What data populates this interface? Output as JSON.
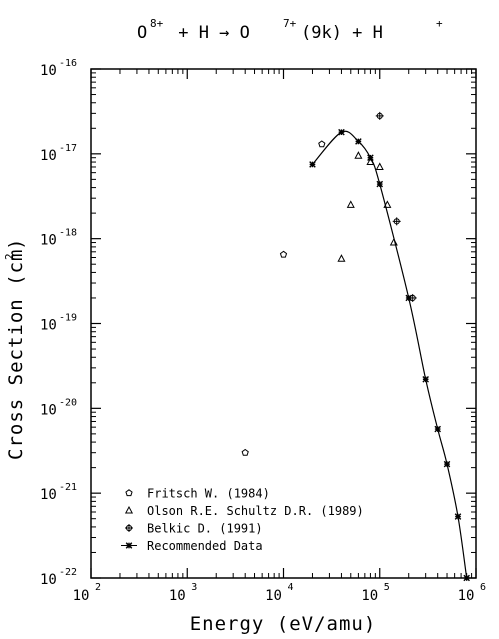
{
  "title": {
    "parts": [
      {
        "text": "O",
        "sup": "8+"
      },
      {
        "text": " + H → O",
        "sup": "7+"
      },
      {
        "text": "(9k) + H",
        "sup": "+"
      }
    ]
  },
  "chart_data": {
    "type": "scatter",
    "xlabel": "Energy (eV/amu)",
    "ylabel_main": "Cross Section (cm",
    "ylabel_sup": "2",
    "ylabel_tail": ")",
    "xscale": "log",
    "yscale": "log",
    "xlim": [
      100,
      1000000
    ],
    "ylim": [
      1e-22,
      1e-16
    ],
    "x_ticks": [
      {
        "base": "10",
        "exp": "2"
      },
      {
        "base": "10",
        "exp": "3"
      },
      {
        "base": "10",
        "exp": "4"
      },
      {
        "base": "10",
        "exp": "5"
      },
      {
        "base": "10",
        "exp": "6"
      }
    ],
    "y_ticks": [
      {
        "base": "10",
        "exp": "-22"
      },
      {
        "base": "10",
        "exp": "-21"
      },
      {
        "base": "10",
        "exp": "-20"
      },
      {
        "base": "10",
        "exp": "-19"
      },
      {
        "base": "10",
        "exp": "-18"
      },
      {
        "base": "10",
        "exp": "-17"
      },
      {
        "base": "10",
        "exp": "-16"
      }
    ],
    "grid": false,
    "legend_position": "bottom-left",
    "series": [
      {
        "name": "Fritsch W. (1984)",
        "marker": "pentagon",
        "x": [
          4000,
          10000,
          25000
        ],
        "y": [
          3e-21,
          6.5e-19,
          1.3e-17
        ]
      },
      {
        "name": "Olson R.E. Schultz D.R. (1989)",
        "marker": "triangle",
        "x": [
          40000,
          50000,
          60000,
          80000,
          100000,
          120000,
          140000
        ],
        "y": [
          5.8e-19,
          2.5e-18,
          9.5e-18,
          8e-18,
          7e-18,
          2.5e-18,
          9e-19
        ]
      },
      {
        "name": "Belkic D. (1991)",
        "marker": "circle-cross",
        "x": [
          100000,
          150000,
          220000
        ],
        "y": [
          2.8e-17,
          1.6e-18,
          2e-19
        ]
      },
      {
        "name": "Recommended Data",
        "marker": "star",
        "line": true,
        "x": [
          20000,
          40000,
          60000,
          80000,
          100000,
          200000,
          300000,
          400000,
          500000,
          650000,
          800000
        ],
        "y": [
          7.5e-18,
          1.8e-17,
          1.4e-17,
          9e-18,
          4.4e-18,
          2e-19,
          2.2e-20,
          5.7e-21,
          2.2e-21,
          5.3e-22,
          1e-22
        ]
      }
    ]
  }
}
